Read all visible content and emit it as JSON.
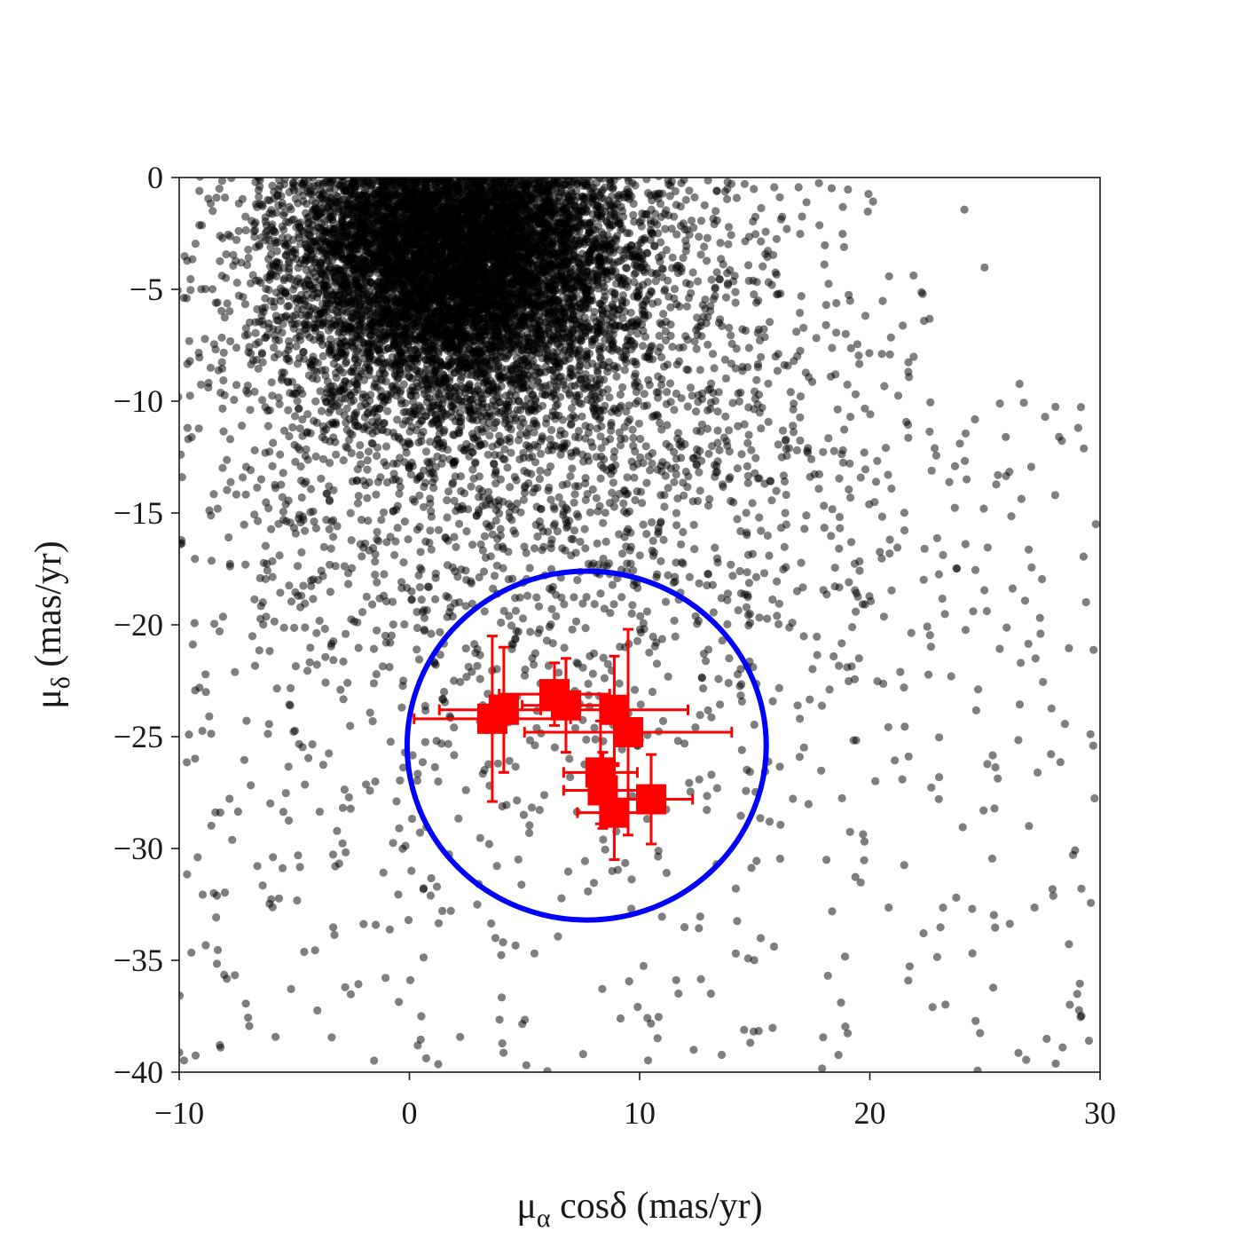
{
  "chart_data": {
    "type": "scatter",
    "title": "",
    "xlabel": {
      "main": "μ",
      "sub": "α",
      "rest": " cosδ (mas/yr)"
    },
    "ylabel": {
      "main": "μ",
      "sub": "δ",
      "rest": " (mas/yr)"
    },
    "xlim": [
      -10,
      30
    ],
    "ylim": [
      -40,
      0
    ],
    "xticks": [
      -10,
      0,
      10,
      20,
      30
    ],
    "xtick_labels": [
      "−10",
      "0",
      "10",
      "20",
      "30"
    ],
    "yticks": [
      0,
      -5,
      -10,
      -15,
      -20,
      -25,
      -30,
      -35,
      -40
    ],
    "ytick_labels": [
      "0",
      "−5",
      "−10",
      "−15",
      "−20",
      "−25",
      "−30",
      "−35",
      "−40"
    ],
    "grid": false,
    "colors": {
      "field": "#000000",
      "members": "#ff0000",
      "circle": "#0000ff",
      "axes": "#1a1a1a"
    },
    "field_stars": {
      "description_of_distribution": "dense clump of field stars with sparse outer scatter",
      "clump_center": [
        2.0,
        -3.0
      ],
      "clump_sigma": [
        3.8,
        3.6
      ],
      "halo_center": [
        5.0,
        -10.0
      ],
      "halo_sigma": [
        8.0,
        8.0
      ],
      "n_clump": 9000,
      "n_halo": 2600,
      "n_sparse": 520,
      "opacity": 0.5
    },
    "selection_circle": {
      "center": [
        7.7,
        -25.4
      ],
      "radius": 7.8
    },
    "members": [
      {
        "x": 3.6,
        "y": -24.2,
        "xerr": 3.4,
        "yerr": 3.7
      },
      {
        "x": 4.1,
        "y": -23.8,
        "xerr": 2.8,
        "yerr": 2.8
      },
      {
        "x": 6.3,
        "y": -23.1,
        "xerr": 2.4,
        "yerr": 1.4
      },
      {
        "x": 6.8,
        "y": -23.6,
        "xerr": 1.9,
        "yerr": 2.1
      },
      {
        "x": 8.9,
        "y": -23.8,
        "xerr": 3.2,
        "yerr": 2.4
      },
      {
        "x": 9.5,
        "y": -24.8,
        "xerr": 4.5,
        "yerr": 4.6
      },
      {
        "x": 8.3,
        "y": -26.6,
        "xerr": 1.6,
        "yerr": 2.3
      },
      {
        "x": 8.4,
        "y": -27.4,
        "xerr": 1.7,
        "yerr": 1.7
      },
      {
        "x": 8.9,
        "y": -28.4,
        "xerr": 1.6,
        "yerr": 2.1
      },
      {
        "x": 10.5,
        "y": -27.8,
        "xerr": 1.8,
        "yerr": 2.0
      }
    ]
  }
}
